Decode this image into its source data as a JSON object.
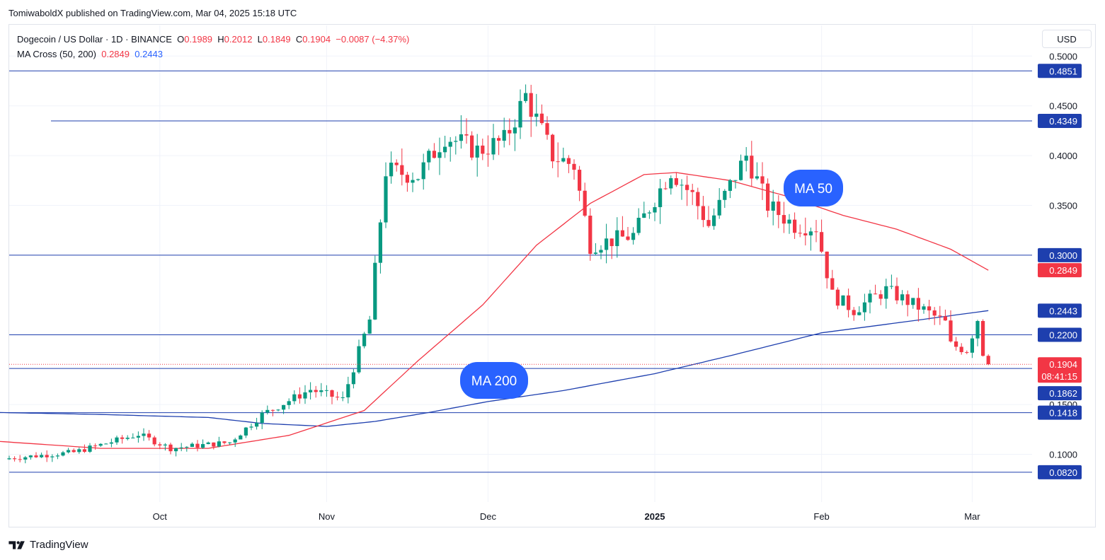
{
  "header": {
    "credit": "TomiwaboldX published on TradingView.com, Mar 04, 2025 15:18 UTC"
  },
  "legend": {
    "symbol": "Dogecoin / US Dollar · 1D · BINANCE",
    "o_label": "O",
    "o": "0.1989",
    "h_label": "H",
    "h": "0.2012",
    "l_label": "L",
    "l": "0.1849",
    "c_label": "C",
    "c": "0.1904",
    "change": "−0.0087 (−4.37%)",
    "ma_label": "MA Cross (50, 200)",
    "ma50": "0.2849",
    "ma200": "0.2443"
  },
  "currency": "USD",
  "footer": {
    "brand": "TradingView"
  },
  "colors": {
    "up": "#089981",
    "down": "#f23645",
    "ma50": "#f23645",
    "ma200": "#1e3fae",
    "level": "#1e3fae",
    "badge": "#2962ff"
  },
  "chart_data": {
    "type": "candlestick",
    "symbol": "DOGEUSD",
    "timeframe": "1D",
    "ylim": [
      0.06,
      0.5
    ],
    "y_ticks": [
      "0.5000",
      "0.4500",
      "0.4000",
      "0.3500",
      "0.1500",
      "0.1000"
    ],
    "x_ticks": [
      {
        "label": "Oct",
        "date": "2024-10-01"
      },
      {
        "label": "Nov",
        "date": "2024-11-01"
      },
      {
        "label": "Dec",
        "date": "2024-12-01"
      },
      {
        "label": "2025",
        "date": "2025-01-01",
        "bold": true
      },
      {
        "label": "Feb",
        "date": "2025-02-01"
      },
      {
        "label": "Mar",
        "date": "2025-03-01"
      }
    ],
    "levels": [
      {
        "value": 0.4851,
        "label": "0.4851"
      },
      {
        "value": 0.4349,
        "label": "0.4349"
      },
      {
        "value": 0.3,
        "label": "0.3000"
      },
      {
        "value": 0.22,
        "label": "0.2200"
      },
      {
        "value": 0.1862,
        "label": "0.1862"
      },
      {
        "value": 0.1418,
        "label": "0.1418"
      },
      {
        "value": 0.082,
        "label": "0.0820"
      }
    ],
    "last_price": {
      "value": 0.1904,
      "label": "0.1904",
      "countdown": "08:41:15"
    },
    "ma50_tag": {
      "value": 0.2849,
      "label": "0.2849"
    },
    "ma200_tag": {
      "value": 0.2443,
      "label": "0.2443"
    },
    "callouts": [
      "MA 50",
      "MA 200"
    ],
    "series_anchors": {
      "price_close": [
        [
          "2024-09-03",
          0.096
        ],
        [
          "2024-09-15",
          0.102
        ],
        [
          "2024-09-27",
          0.12
        ],
        [
          "2024-10-03",
          0.106
        ],
        [
          "2024-10-14",
          0.112
        ],
        [
          "2024-10-20",
          0.14
        ],
        [
          "2024-10-29",
          0.165
        ],
        [
          "2024-11-04",
          0.155
        ],
        [
          "2024-11-09",
          0.235
        ],
        [
          "2024-11-12",
          0.385
        ],
        [
          "2024-11-18",
          0.38
        ],
        [
          "2024-11-23",
          0.42
        ],
        [
          "2024-11-29",
          0.405
        ],
        [
          "2024-12-04",
          0.415
        ],
        [
          "2024-12-08",
          0.46
        ],
        [
          "2024-12-13",
          0.4
        ],
        [
          "2024-12-17",
          0.39
        ],
        [
          "2024-12-20",
          0.31
        ],
        [
          "2024-12-28",
          0.32
        ],
        [
          "2025-01-04",
          0.385
        ],
        [
          "2025-01-08",
          0.36
        ],
        [
          "2025-01-11",
          0.33
        ],
        [
          "2025-01-18",
          0.4
        ],
        [
          "2025-01-22",
          0.35
        ],
        [
          "2025-01-27",
          0.33
        ],
        [
          "2025-01-31",
          0.328
        ],
        [
          "2025-02-03",
          0.26
        ],
        [
          "2025-02-07",
          0.245
        ],
        [
          "2025-02-13",
          0.265
        ],
        [
          "2025-02-20",
          0.245
        ],
        [
          "2025-02-24",
          0.232
        ],
        [
          "2025-02-25",
          0.21
        ],
        [
          "2025-02-28",
          0.205
        ],
        [
          "2025-03-02",
          0.236
        ],
        [
          "2025-03-03",
          0.1989
        ],
        [
          "2025-03-04",
          0.1904
        ]
      ],
      "ma50": [
        [
          "2024-09-01",
          0.113
        ],
        [
          "2024-09-20",
          0.106
        ],
        [
          "2024-10-10",
          0.106
        ],
        [
          "2024-10-25",
          0.119
        ],
        [
          "2024-11-08",
          0.144
        ],
        [
          "2024-11-18",
          0.194
        ],
        [
          "2024-11-30",
          0.25
        ],
        [
          "2024-12-10",
          0.31
        ],
        [
          "2024-12-20",
          0.352
        ],
        [
          "2024-12-30",
          0.381
        ],
        [
          "2025-01-05",
          0.383
        ],
        [
          "2025-01-15",
          0.375
        ],
        [
          "2025-01-25",
          0.36
        ],
        [
          "2025-02-05",
          0.34
        ],
        [
          "2025-02-15",
          0.326
        ],
        [
          "2025-02-25",
          0.306
        ],
        [
          "2025-03-04",
          0.2849
        ]
      ],
      "ma200": [
        [
          "2024-09-01",
          0.142
        ],
        [
          "2024-09-20",
          0.14
        ],
        [
          "2024-10-10",
          0.137
        ],
        [
          "2024-10-20",
          0.131
        ],
        [
          "2024-11-01",
          0.128
        ],
        [
          "2024-11-10",
          0.133
        ],
        [
          "2024-11-20",
          0.142
        ],
        [
          "2024-12-01",
          0.153
        ],
        [
          "2024-12-15",
          0.164
        ],
        [
          "2025-01-01",
          0.181
        ],
        [
          "2025-01-15",
          0.199
        ],
        [
          "2025-02-01",
          0.222
        ],
        [
          "2025-02-15",
          0.232
        ],
        [
          "2025-03-04",
          0.2443
        ]
      ]
    }
  }
}
